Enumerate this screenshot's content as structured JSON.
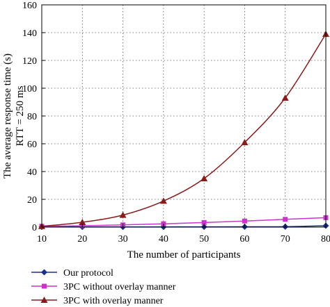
{
  "chart_data": {
    "type": "line",
    "x": [
      10,
      20,
      30,
      40,
      50,
      60,
      70,
      80
    ],
    "xlim": [
      10,
      80
    ],
    "ylim": [
      0,
      160
    ],
    "xticks": [
      10,
      20,
      30,
      40,
      50,
      60,
      70,
      80
    ],
    "yticks": [
      0,
      20,
      40,
      60,
      80,
      100,
      120,
      140,
      160
    ],
    "xlabel": "The number of participants",
    "ylabel": [
      "The average response time (s)",
      "RTT = 250 ms"
    ],
    "grid": "dotted",
    "legend_position": "bottom",
    "series": [
      {
        "name": "Our protocol",
        "values": [
          0.1,
          0.1,
          0.1,
          0.15,
          0.2,
          0.25,
          0.3,
          1.0
        ],
        "color": "#1a2f8c",
        "marker": "diamond"
      },
      {
        "name": "3PC without overlay manner",
        "values": [
          0.6,
          1.0,
          1.6,
          2.4,
          3.3,
          4.4,
          5.6,
          6.8
        ],
        "color": "#cc33cc",
        "marker": "square"
      },
      {
        "name": "3PC with overlay manner",
        "values": [
          0.6,
          3.5,
          8.7,
          18.8,
          35.0,
          61.0,
          93.0,
          139.0
        ],
        "color": "#8b1a1a",
        "marker": "triangle"
      }
    ]
  }
}
